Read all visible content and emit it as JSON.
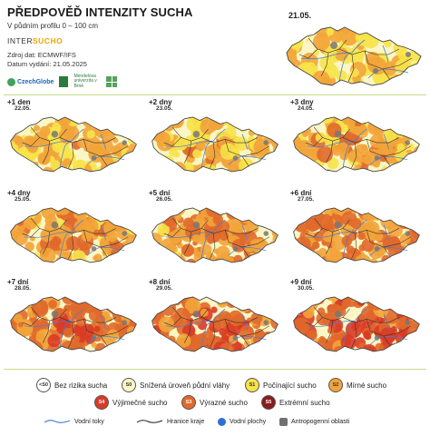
{
  "header": {
    "title": "PŘEDPOVĚĎ INTENZITY SUCHA",
    "subtitle": "V půdním profilu 0 – 100 cm",
    "brand_prefix": "INTER",
    "brand_suffix": "SUCHO",
    "source": "Zdroj dat: ECMWF/IFS",
    "issued": "Datum vydání: 21.05.2025",
    "logos": {
      "czechglobe": "CzechGlobe",
      "mendel": "Mendelova univerzita v Brně"
    }
  },
  "current_map": {
    "date": "21.05.",
    "severity": 0.35
  },
  "forecast_panels": [
    {
      "day": "+1 den",
      "date": "22.05.",
      "severity": 0.45
    },
    {
      "day": "+2 dny",
      "date": "23.05.",
      "severity": 0.5
    },
    {
      "day": "+3 dny",
      "date": "24.05.",
      "severity": 0.55
    },
    {
      "day": "+4 dny",
      "date": "25.05.",
      "severity": 0.6
    },
    {
      "day": "+5 dní",
      "date": "26.05.",
      "severity": 0.65
    },
    {
      "day": "+6 dní",
      "date": "27.05.",
      "severity": 0.7
    },
    {
      "day": "+7 dní",
      "date": "28.05.",
      "severity": 0.78
    },
    {
      "day": "+8 dní",
      "date": "29.05.",
      "severity": 0.85
    },
    {
      "day": "+9 dní",
      "date": "30.05.",
      "severity": 0.9
    }
  ],
  "legend": {
    "classes": [
      {
        "code": "<S0",
        "label": "Bez rizika sucha",
        "color": "#ffffff"
      },
      {
        "code": "S0",
        "label": "Snížená úroveň půdní vláhy",
        "color": "#fbf6c4"
      },
      {
        "code": "S1",
        "label": "Počínající sucho",
        "color": "#f7e34a"
      },
      {
        "code": "S2",
        "label": "Mírné sucho",
        "color": "#f2a43a"
      },
      {
        "code": "S4",
        "label": "Výjimečné sucho",
        "color": "#d93b26"
      },
      {
        "code": "S3",
        "label": "Výrazné sucho",
        "color": "#e0692b"
      },
      {
        "code": "S5",
        "label": "Extrémní sucho",
        "color": "#8a1c1c"
      }
    ],
    "lines": [
      {
        "label": "Vodní toky",
        "color": "#4a7fd4"
      },
      {
        "label": "Hranice kraje",
        "color": "#222222"
      },
      {
        "label": "Vodní plochy",
        "color": "#2f6fd0"
      },
      {
        "label": "Antropogenní oblasti",
        "color": "#707070"
      }
    ]
  },
  "palette": [
    "#fbf6c4",
    "#f7e34a",
    "#f2a43a",
    "#e0692b",
    "#d93b26",
    "#8a1c1c"
  ]
}
